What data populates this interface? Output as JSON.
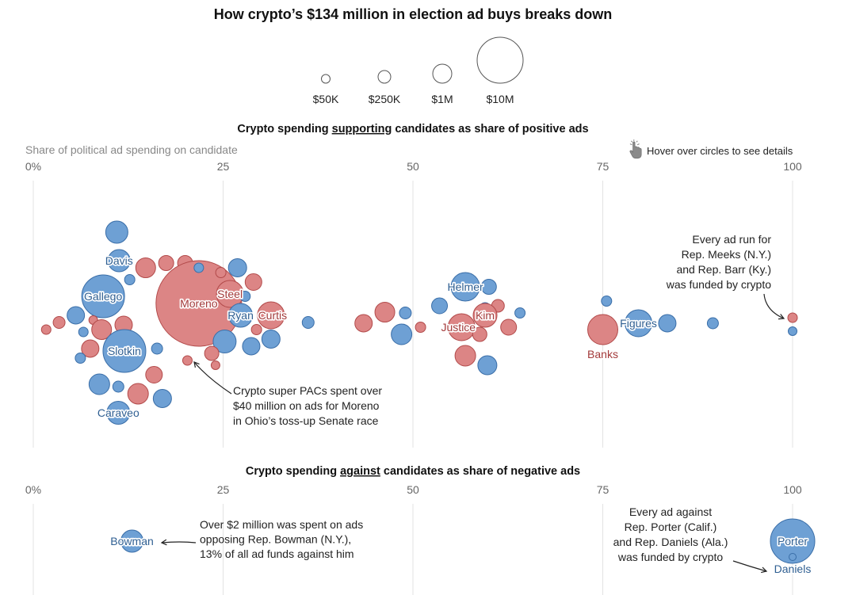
{
  "colors": {
    "support_fill": "#6ea0d4",
    "support_stroke": "#3a6ea8",
    "oppose_fill": "#dc8585",
    "oppose_stroke": "#b24a4a",
    "label_blue": "#2f5f92",
    "label_red": "#a33a3a",
    "grid": "#e3e3e3"
  },
  "hint": {
    "icon": "pointer-hand-icon",
    "text": "Hover over circles to see details"
  },
  "chart_data": {
    "type": "scatter",
    "title": "How crypto’s $134 million in election ad buys breaks down",
    "size_legend": {
      "labels": [
        "$50K",
        "$250K",
        "$1M",
        "$10M"
      ],
      "values": [
        50000,
        250000,
        1000000,
        10000000
      ]
    },
    "panels": [
      {
        "id": "supporting",
        "title_pre": "Crypto spending ",
        "title_key": "supporting",
        "title_post": " candidates as share of positive ads",
        "axis_label": "Share of political ad spending on candidate",
        "xlim": [
          0,
          100
        ],
        "ticks": [
          "0%",
          "25",
          "50",
          "75",
          "100"
        ],
        "tick_values": [
          0,
          25,
          50,
          75,
          100
        ],
        "bubbles": [
          {
            "x": 11,
            "row": -10.5,
            "r": 14,
            "side": "support"
          },
          {
            "x": 11.3,
            "row": -6.9,
            "r": 14,
            "side": "support",
            "label": "Davis"
          },
          {
            "x": 9.2,
            "row": -2.4,
            "r": 27,
            "side": "support",
            "label": "Gallego"
          },
          {
            "x": 12.7,
            "row": -4.5,
            "r": 6.5,
            "side": "support"
          },
          {
            "x": 14.8,
            "row": -6.0,
            "r": 12.5,
            "side": "oppose"
          },
          {
            "x": 17.5,
            "row": -6.6,
            "r": 9.5,
            "side": "oppose"
          },
          {
            "x": 20.0,
            "row": -6.6,
            "r": 9.5,
            "side": "oppose"
          },
          {
            "x": 21.8,
            "row": -1.5,
            "r": 54,
            "side": "oppose",
            "label": "Moreno"
          },
          {
            "x": 21.8,
            "row": -6.0,
            "r": 6,
            "side": "support"
          },
          {
            "x": 24.7,
            "row": -5.4,
            "r": 6.5,
            "side": "oppose"
          },
          {
            "x": 26.9,
            "row": -6.0,
            "r": 11.5,
            "side": "support"
          },
          {
            "x": 29.0,
            "row": -4.2,
            "r": 10.5,
            "side": "oppose"
          },
          {
            "x": 25.9,
            "row": -2.7,
            "r": 17,
            "side": "oppose",
            "label": "Steel"
          },
          {
            "x": 27.9,
            "row": -2.4,
            "r": 6.5,
            "side": "support"
          },
          {
            "x": 27.3,
            "row": 0.0,
            "r": 15,
            "side": "support",
            "label": "Ryan"
          },
          {
            "x": 31.3,
            "row": 0.0,
            "r": 17,
            "side": "oppose",
            "label": "Curtis"
          },
          {
            "x": 29.4,
            "row": 1.8,
            "r": 6.5,
            "side": "oppose"
          },
          {
            "x": 25.2,
            "row": 3.3,
            "r": 14.5,
            "side": "support"
          },
          {
            "x": 28.7,
            "row": 3.9,
            "r": 11,
            "side": "support"
          },
          {
            "x": 31.3,
            "row": 3.0,
            "r": 11.5,
            "side": "support"
          },
          {
            "x": 36.2,
            "row": 0.9,
            "r": 7.5,
            "side": "support"
          },
          {
            "x": 5.6,
            "row": 0.0,
            "r": 11,
            "side": "support"
          },
          {
            "x": 3.4,
            "row": 0.9,
            "r": 7.5,
            "side": "oppose"
          },
          {
            "x": 1.7,
            "row": 1.8,
            "r": 6,
            "side": "oppose"
          },
          {
            "x": 6.6,
            "row": 2.1,
            "r": 6,
            "side": "support"
          },
          {
            "x": 7.9,
            "row": 0.6,
            "r": 5.5,
            "side": "oppose"
          },
          {
            "x": 9.0,
            "row": 1.8,
            "r": 12.5,
            "side": "oppose"
          },
          {
            "x": 11.9,
            "row": 1.2,
            "r": 11,
            "side": "oppose"
          },
          {
            "x": 7.5,
            "row": 4.2,
            "r": 11,
            "side": "oppose"
          },
          {
            "x": 6.2,
            "row": 5.4,
            "r": 6.5,
            "side": "support"
          },
          {
            "x": 12.0,
            "row": 4.5,
            "r": 27,
            "side": "support",
            "label": "Slotkin"
          },
          {
            "x": 16.3,
            "row": 4.2,
            "r": 7,
            "side": "support"
          },
          {
            "x": 23.5,
            "row": 4.8,
            "r": 9,
            "side": "oppose"
          },
          {
            "x": 20.3,
            "row": 5.7,
            "r": 6,
            "side": "oppose"
          },
          {
            "x": 24.0,
            "row": 6.3,
            "r": 5.5,
            "side": "oppose"
          },
          {
            "x": 15.9,
            "row": 7.5,
            "r": 10.5,
            "side": "oppose"
          },
          {
            "x": 8.7,
            "row": 8.7,
            "r": 13,
            "side": "support"
          },
          {
            "x": 11.2,
            "row": 9.0,
            "r": 7,
            "side": "support"
          },
          {
            "x": 13.8,
            "row": 9.9,
            "r": 13,
            "side": "oppose"
          },
          {
            "x": 17.0,
            "row": 10.5,
            "r": 11.5,
            "side": "support"
          },
          {
            "x": 11.2,
            "row": 12.3,
            "r": 14.5,
            "side": "support",
            "label": "Caraveo"
          },
          {
            "x": 43.5,
            "row": 1.0,
            "r": 11,
            "side": "oppose"
          },
          {
            "x": 46.3,
            "row": -0.4,
            "r": 12.5,
            "side": "oppose"
          },
          {
            "x": 49.0,
            "row": -0.3,
            "r": 7.5,
            "side": "support"
          },
          {
            "x": 48.5,
            "row": 2.4,
            "r": 13,
            "side": "support"
          },
          {
            "x": 51.0,
            "row": 1.5,
            "r": 6.5,
            "side": "oppose"
          },
          {
            "x": 53.5,
            "row": -1.2,
            "r": 10,
            "side": "support"
          },
          {
            "x": 56.9,
            "row": -3.6,
            "r": 18,
            "side": "support",
            "label": "Helmer"
          },
          {
            "x": 60.0,
            "row": -3.6,
            "r": 9.5,
            "side": "support"
          },
          {
            "x": 59.5,
            "row": -0.9,
            "r": 7,
            "side": "support"
          },
          {
            "x": 61.2,
            "row": -1.2,
            "r": 8,
            "side": "oppose"
          },
          {
            "x": 59.5,
            "row": 0.0,
            "r": 15,
            "side": "oppose",
            "label": "Kim"
          },
          {
            "x": 56.4,
            "row": 1.5,
            "r": 17,
            "side": "oppose",
            "label": "Justice"
          },
          {
            "x": 58.8,
            "row": 2.4,
            "r": 9,
            "side": "oppose"
          },
          {
            "x": 64.1,
            "row": -0.3,
            "r": 6.5,
            "side": "support"
          },
          {
            "x": 62.6,
            "row": 1.5,
            "r": 10,
            "side": "oppose"
          },
          {
            "x": 56.9,
            "row": 5.1,
            "r": 13,
            "side": "oppose"
          },
          {
            "x": 59.8,
            "row": 6.3,
            "r": 12,
            "side": "support"
          },
          {
            "x": 75.0,
            "row": 1.8,
            "r": 19,
            "side": "oppose",
            "label": "Banks"
          },
          {
            "x": 75.5,
            "row": -1.8,
            "r": 6.5,
            "side": "support"
          },
          {
            "x": 79.7,
            "row": 1.0,
            "r": 17,
            "side": "support",
            "label": "Figures"
          },
          {
            "x": 83.5,
            "row": 1.0,
            "r": 11,
            "side": "support"
          },
          {
            "x": 89.5,
            "row": 1.0,
            "r": 7,
            "side": "support"
          },
          {
            "x": 100,
            "row": 0.3,
            "r": 6,
            "side": "oppose"
          },
          {
            "x": 100,
            "row": 2.0,
            "r": 5.5,
            "side": "support"
          }
        ],
        "annotations": [
          {
            "key": "moreno",
            "lines": [
              "Crypto super PACs spent over",
              "$40 million on ads for Moreno",
              "in Ohio’s toss-up Senate race"
            ],
            "align": "start"
          },
          {
            "key": "meeks",
            "lines": [
              "Every ad run for",
              "Rep. Meeks (N.Y.)",
              "and Rep. Barr (Ky.)",
              "was funded by crypto"
            ],
            "align": "end"
          }
        ]
      },
      {
        "id": "against",
        "title_pre": "Crypto spending ",
        "title_key": "against",
        "title_post": " candidates as share of negative ads",
        "xlim": [
          0,
          100
        ],
        "ticks": [
          "0%",
          "25",
          "50",
          "75",
          "100"
        ],
        "tick_values": [
          0,
          25,
          50,
          75,
          100
        ],
        "bubbles": [
          {
            "x": 13.0,
            "row": 0,
            "r": 14,
            "side": "support",
            "label": "Bowman"
          },
          {
            "x": 100,
            "row": 0,
            "r": 28,
            "side": "support",
            "label": "Porter"
          },
          {
            "x": 100,
            "row": 2,
            "r": 4.5,
            "side": "support",
            "label": "Daniels"
          }
        ],
        "annotations": [
          {
            "key": "bowman",
            "lines": [
              "Over $2 million was spent on ads",
              "opposing Rep. Bowman (N.Y.),",
              "13% of all ad funds against him"
            ],
            "align": "start"
          },
          {
            "key": "porter",
            "lines": [
              "Every ad against",
              "Rep. Porter (Calif.)",
              "and Rep. Daniels (Ala.)",
              "was funded by crypto"
            ],
            "align": "middle"
          }
        ]
      }
    ]
  }
}
